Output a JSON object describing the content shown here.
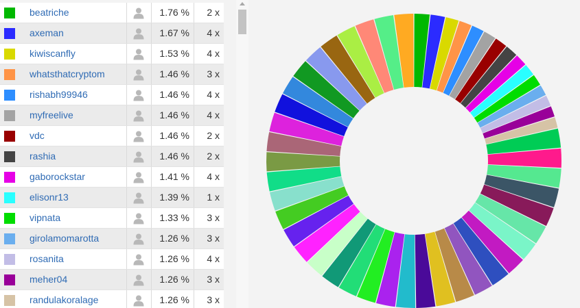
{
  "users": [
    {
      "name": "beatriche",
      "percent": "1.76 %",
      "count": "2 x",
      "color": "#00b800"
    },
    {
      "name": "axeman",
      "percent": "1.67 %",
      "count": "4 x",
      "color": "#2b2bff"
    },
    {
      "name": "kiwiscanfly",
      "percent": "1.53 %",
      "count": "4 x",
      "color": "#d9d900"
    },
    {
      "name": "whatsthatcryptom",
      "percent": "1.46 %",
      "count": "3 x",
      "color": "#ff9447"
    },
    {
      "name": "rishabh99946",
      "percent": "1.46 %",
      "count": "4 x",
      "color": "#2e8eff"
    },
    {
      "name": "myfreelive",
      "percent": "1.46 %",
      "count": "4 x",
      "color": "#a3a3a3"
    },
    {
      "name": "vdc",
      "percent": "1.46 %",
      "count": "2 x",
      "color": "#990000"
    },
    {
      "name": "rashia",
      "percent": "1.46 %",
      "count": "2 x",
      "color": "#444444"
    },
    {
      "name": "gaborockstar",
      "percent": "1.41 %",
      "count": "4 x",
      "color": "#e600e6"
    },
    {
      "name": "elisonr13",
      "percent": "1.39 %",
      "count": "1 x",
      "color": "#29ffff"
    },
    {
      "name": "vipnata",
      "percent": "1.33 %",
      "count": "3 x",
      "color": "#00dd00"
    },
    {
      "name": "girolamomarotta",
      "percent": "1.26 %",
      "count": "3 x",
      "color": "#6aaeee"
    },
    {
      "name": "rosanita",
      "percent": "1.26 %",
      "count": "4 x",
      "color": "#c2bde6"
    },
    {
      "name": "meher04",
      "percent": "1.26 %",
      "count": "3 x",
      "color": "#990099"
    },
    {
      "name": "randulakoralage",
      "percent": "1.26 %",
      "count": "3 x",
      "color": "#d6c3a6"
    }
  ],
  "chart_data": {
    "type": "pie",
    "donut": true,
    "series_values_visible": [
      1.76,
      1.67,
      1.53,
      1.46,
      1.46,
      1.46,
      1.46,
      1.46,
      1.41,
      1.39,
      1.33,
      1.26,
      1.26,
      1.26,
      1.26
    ],
    "slice_colors": [
      "#00b800",
      "#2b2bff",
      "#d9d900",
      "#ff9447",
      "#2e8eff",
      "#a3a3a3",
      "#990000",
      "#444444",
      "#e600e6",
      "#29ffff",
      "#00dd00",
      "#6aaeee",
      "#c2bde6",
      "#990099",
      "#d6c3a6",
      "#00cc55",
      "#ff1a8c",
      "#55e890",
      "#3b5566",
      "#881a5a",
      "#66e6a8",
      "#7af5c8",
      "#c21ac2",
      "#2e4fbf",
      "#9155bf",
      "#b88a48",
      "#e0c020",
      "#4a0a99",
      "#22bbcc",
      "#aa22ee",
      "#22ee22",
      "#22dd77",
      "#119977",
      "#c8ffc8",
      "#ff22ff",
      "#6622ee",
      "#44cc22",
      "#88e0cc",
      "#11dd88",
      "#7a9a44",
      "#aa6677",
      "#dd22dd",
      "#1111dd",
      "#3388dd",
      "#119922",
      "#8899ee",
      "#996611",
      "#aaee44",
      "#ff8877",
      "#55ee88",
      "#ffaa22"
    ],
    "ordering": "clockwise-from-top"
  }
}
